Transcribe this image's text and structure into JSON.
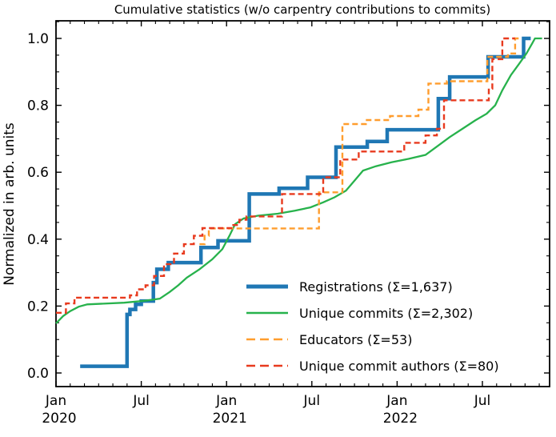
{
  "chart_data": {
    "type": "line",
    "title": "Cumulative statistics (w/o carpentry contributions to commits)",
    "ylabel": "Normalized in arb. units",
    "xlabel": "",
    "x_axis": {
      "unit": "months since Jan 2020",
      "xlim": [
        0,
        34.7
      ],
      "major_ticks": [
        {
          "month": 0,
          "label": "Jan",
          "year": "2020"
        },
        {
          "month": 6,
          "label": "Jul",
          "year": ""
        },
        {
          "month": 12,
          "label": "Jan",
          "year": "2021"
        },
        {
          "month": 18,
          "label": "Jul",
          "year": ""
        },
        {
          "month": 24,
          "label": "Jan",
          "year": "2022"
        },
        {
          "month": 30,
          "label": "Jul",
          "year": ""
        }
      ],
      "minor_tick_step_months": 1
    },
    "y_axis": {
      "ylim": [
        -0.041,
        1.053
      ],
      "major_ticks": [
        {
          "value": 0.0,
          "label": "0.0"
        },
        {
          "value": 0.2,
          "label": "0.2"
        },
        {
          "value": 0.4,
          "label": "0.4"
        },
        {
          "value": 0.6,
          "label": "0.6"
        },
        {
          "value": 0.8,
          "label": "0.8"
        },
        {
          "value": 1.0,
          "label": "1.0"
        }
      ],
      "minor_tick_step": 0.05
    },
    "grid": false,
    "legend_position": "lower right",
    "series": [
      {
        "name": "Registrations  (Σ=1,637)",
        "total": "1,637",
        "color": "#1f77b4",
        "style": "solid",
        "line_width": 4.5,
        "step": true,
        "points": [
          [
            1.7,
            0.02
          ],
          [
            5.0,
            0.175
          ],
          [
            5.2,
            0.19
          ],
          [
            5.6,
            0.205
          ],
          [
            6.0,
            0.215
          ],
          [
            6.85,
            0.27
          ],
          [
            7.1,
            0.31
          ],
          [
            7.9,
            0.33
          ],
          [
            10.2,
            0.375
          ],
          [
            11.4,
            0.395
          ],
          [
            13.6,
            0.535
          ],
          [
            15.7,
            0.552
          ],
          [
            17.7,
            0.585
          ],
          [
            19.7,
            0.675
          ],
          [
            21.9,
            0.692
          ],
          [
            23.3,
            0.727
          ],
          [
            26.9,
            0.82
          ],
          [
            27.7,
            0.885
          ],
          [
            30.4,
            0.945
          ],
          [
            32.9,
            1.0
          ],
          [
            33.4,
            1.0
          ]
        ]
      },
      {
        "name": "Unique commits (Σ=2,302)",
        "total": "2,302",
        "color": "#27b24c",
        "style": "solid",
        "line_width": 2.3,
        "step": false,
        "points": [
          [
            0,
            0.148
          ],
          [
            0.5,
            0.17
          ],
          [
            1.0,
            0.185
          ],
          [
            1.6,
            0.198
          ],
          [
            2.2,
            0.205
          ],
          [
            4.8,
            0.21
          ],
          [
            6.3,
            0.216
          ],
          [
            7.3,
            0.222
          ],
          [
            8.0,
            0.242
          ],
          [
            8.6,
            0.262
          ],
          [
            9.2,
            0.285
          ],
          [
            10.1,
            0.31
          ],
          [
            11.0,
            0.34
          ],
          [
            11.7,
            0.37
          ],
          [
            12.2,
            0.41
          ],
          [
            12.6,
            0.445
          ],
          [
            13.2,
            0.462
          ],
          [
            14.2,
            0.47
          ],
          [
            15.6,
            0.476
          ],
          [
            16.8,
            0.485
          ],
          [
            17.9,
            0.495
          ],
          [
            18.8,
            0.51
          ],
          [
            19.6,
            0.525
          ],
          [
            20.4,
            0.545
          ],
          [
            21.0,
            0.575
          ],
          [
            21.6,
            0.605
          ],
          [
            22.5,
            0.618
          ],
          [
            23.6,
            0.63
          ],
          [
            24.8,
            0.64
          ],
          [
            26.0,
            0.652
          ],
          [
            26.9,
            0.68
          ],
          [
            27.7,
            0.705
          ],
          [
            28.6,
            0.73
          ],
          [
            29.5,
            0.755
          ],
          [
            30.3,
            0.775
          ],
          [
            30.9,
            0.8
          ],
          [
            31.4,
            0.845
          ],
          [
            32.0,
            0.89
          ],
          [
            32.6,
            0.925
          ],
          [
            33.1,
            0.955
          ],
          [
            33.5,
            0.985
          ],
          [
            33.7,
            1.0
          ],
          [
            34.2,
            1.0
          ]
        ]
      },
      {
        "name": "Educators (Σ=53)",
        "total": "53",
        "color": "#ff9d2e",
        "style": "dashed",
        "line_width": 2.4,
        "step": true,
        "points": [
          [
            10.1,
            0.385
          ],
          [
            10.45,
            0.41
          ],
          [
            10.75,
            0.432
          ],
          [
            18.5,
            0.54
          ],
          [
            20.15,
            0.744
          ],
          [
            21.8,
            0.756
          ],
          [
            23.5,
            0.768
          ],
          [
            25.5,
            0.787
          ],
          [
            26.2,
            0.865
          ],
          [
            27.5,
            0.872
          ],
          [
            30.35,
            0.945
          ],
          [
            31.8,
            0.955
          ],
          [
            32.3,
            1.0
          ],
          [
            32.7,
            1.0
          ]
        ]
      },
      {
        "name": "Unique commit authors (Σ=80)",
        "total": "80",
        "color": "#e83a1e",
        "style": "dashed",
        "line_width": 2.4,
        "step": true,
        "points": [
          [
            0,
            0.18
          ],
          [
            0.7,
            0.208
          ],
          [
            1.3,
            0.225
          ],
          [
            5.2,
            0.232
          ],
          [
            5.7,
            0.25
          ],
          [
            6.3,
            0.262
          ],
          [
            6.9,
            0.29
          ],
          [
            7.6,
            0.325
          ],
          [
            8.3,
            0.357
          ],
          [
            9.0,
            0.385
          ],
          [
            9.7,
            0.41
          ],
          [
            10.3,
            0.433
          ],
          [
            12.4,
            0.442
          ],
          [
            12.9,
            0.458
          ],
          [
            13.4,
            0.468
          ],
          [
            15.9,
            0.535
          ],
          [
            18.8,
            0.585
          ],
          [
            20.0,
            0.638
          ],
          [
            21.3,
            0.662
          ],
          [
            24.5,
            0.688
          ],
          [
            26.0,
            0.71
          ],
          [
            26.8,
            0.73
          ],
          [
            27.3,
            0.815
          ],
          [
            30.45,
            0.85
          ],
          [
            30.7,
            0.938
          ],
          [
            31.4,
            1.0
          ],
          [
            32.3,
            1.0
          ]
        ]
      }
    ]
  }
}
